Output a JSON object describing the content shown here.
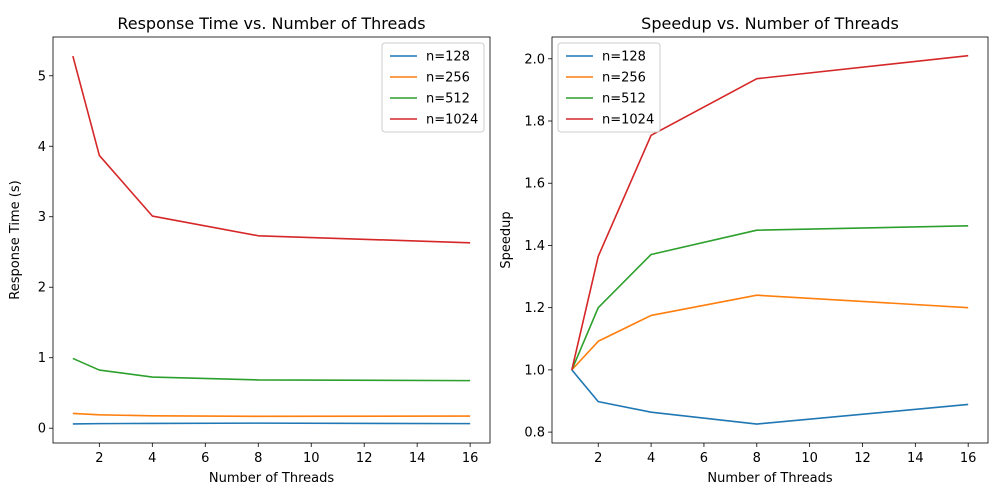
{
  "chart_data": [
    {
      "type": "line",
      "title": "Response Time vs. Number of Threads",
      "xlabel": "Number of Threads",
      "ylabel": "Response Time (s)",
      "xlim": [
        0.25,
        16.75
      ],
      "ylim": [
        -0.21,
        5.55
      ],
      "xticks": [
        2,
        4,
        6,
        8,
        10,
        12,
        14,
        16
      ],
      "yticks": [
        0,
        1,
        2,
        3,
        4,
        5
      ],
      "grid": false,
      "legend": "top-right",
      "x": [
        1,
        2,
        4,
        8,
        16
      ],
      "series": [
        {
          "name": "n=128",
          "color": "#1f77b4",
          "values": [
            0.06,
            0.065,
            0.068,
            0.072,
            0.065
          ]
        },
        {
          "name": "n=256",
          "color": "#ff7f0e",
          "values": [
            0.21,
            0.19,
            0.175,
            0.168,
            0.172
          ]
        },
        {
          "name": "n=512",
          "color": "#2ca02c",
          "values": [
            0.99,
            0.825,
            0.725,
            0.685,
            0.675
          ]
        },
        {
          "name": "n=1024",
          "color": "#d62728",
          "values": [
            5.28,
            3.87,
            3.01,
            2.73,
            2.63
          ]
        }
      ]
    },
    {
      "type": "line",
      "title": "Speedup vs. Number of Threads",
      "xlabel": "Number of Threads",
      "ylabel": "Speedup",
      "xlim": [
        0.25,
        16.75
      ],
      "ylim": [
        0.765,
        2.07
      ],
      "xticks": [
        2,
        4,
        6,
        8,
        10,
        12,
        14,
        16
      ],
      "yticks": [
        0.8,
        1.0,
        1.2,
        1.4,
        1.6,
        1.8,
        2.0
      ],
      "grid": false,
      "legend": "top-left",
      "x": [
        1,
        2,
        4,
        8,
        16
      ],
      "series": [
        {
          "name": "n=128",
          "color": "#1f77b4",
          "values": [
            1.0,
            0.898,
            0.864,
            0.826,
            0.889
          ]
        },
        {
          "name": "n=256",
          "color": "#ff7f0e",
          "values": [
            1.0,
            1.092,
            1.175,
            1.24,
            1.2
          ]
        },
        {
          "name": "n=512",
          "color": "#2ca02c",
          "values": [
            1.0,
            1.2,
            1.371,
            1.449,
            1.463
          ]
        },
        {
          "name": "n=1024",
          "color": "#d62728",
          "values": [
            1.0,
            1.365,
            1.754,
            1.936,
            2.01
          ]
        }
      ]
    }
  ]
}
